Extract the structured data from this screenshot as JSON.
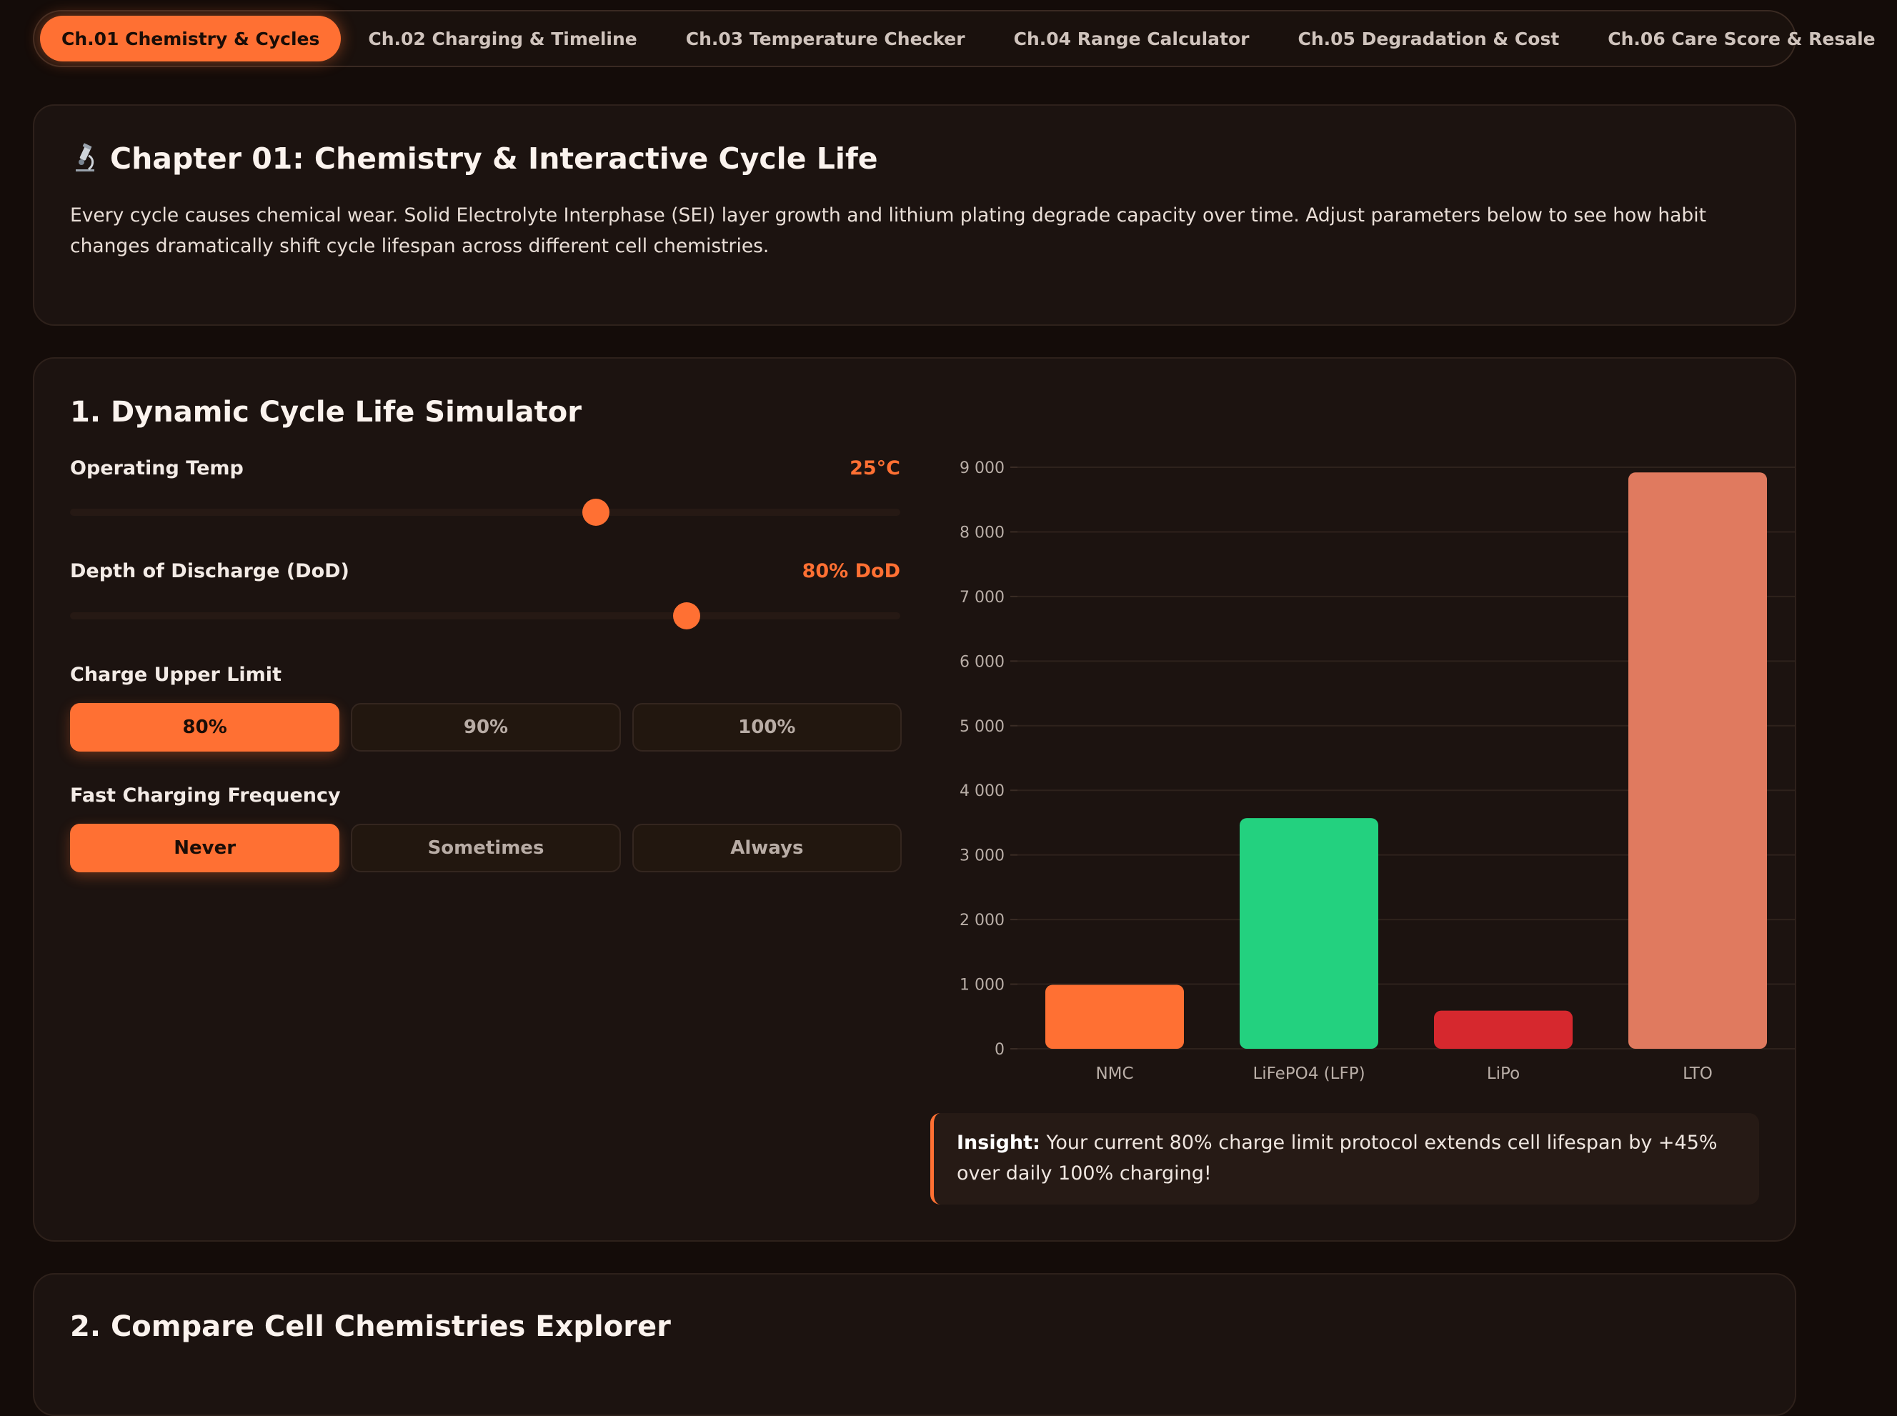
{
  "nav": {
    "tabs": [
      {
        "label": "Ch.01 Chemistry & Cycles",
        "active": true
      },
      {
        "label": "Ch.02 Charging & Timeline",
        "active": false
      },
      {
        "label": "Ch.03 Temperature Checker",
        "active": false
      },
      {
        "label": "Ch.04 Range Calculator",
        "active": false
      },
      {
        "label": "Ch.05 Degradation & Cost",
        "active": false
      },
      {
        "label": "Ch.06 Care Score & Resale",
        "active": false
      }
    ]
  },
  "chapter": {
    "icon": "microscope-icon",
    "title": "Chapter 01: Chemistry & Interactive Cycle Life",
    "description": "Every cycle causes chemical wear. Solid Electrolyte Interphase (SEI) layer growth and lithium plating degrade capacity over time. Adjust parameters below to see how habit changes dramatically shift cycle lifespan across different cell chemistries."
  },
  "simulator": {
    "title": "1. Dynamic Cycle Life Simulator",
    "operating_temp": {
      "label": "Operating Temp",
      "value": "25°C",
      "fraction": 0.633
    },
    "dod": {
      "label": "Depth of Discharge (DoD)",
      "value": "80% DoD",
      "fraction": 0.743
    },
    "charge_limit": {
      "label": "Charge Upper Limit",
      "options": [
        "80%",
        "90%",
        "100%"
      ],
      "selected": "80%"
    },
    "fast_charging": {
      "label": "Fast Charging Frequency",
      "options": [
        "Never",
        "Sometimes",
        "Always"
      ],
      "selected": "Never"
    },
    "insight": {
      "lead": "Insight:",
      "text": " Your current 80% charge limit protocol extends cell lifespan by +45% over daily 100% charging!"
    }
  },
  "chart_data": {
    "type": "bar",
    "categories": [
      "NMC",
      "LiFePO4 (LFP)",
      "LiPo",
      "LTO"
    ],
    "values": [
      990,
      3570,
      590,
      8920
    ],
    "colors": [
      "#ff7033",
      "#23d17f",
      "#d6282e",
      "#e07a5f"
    ],
    "ylim": [
      0,
      9000
    ],
    "yticks": [
      0,
      1000,
      2000,
      3000,
      4000,
      5000,
      6000,
      7000,
      8000,
      9000
    ],
    "ytick_labels": [
      "0",
      "1 000",
      "2 000",
      "3 000",
      "4 000",
      "5 000",
      "6 000",
      "7 000",
      "8 000",
      "9 000"
    ],
    "grid": true
  },
  "explorer": {
    "title": "2. Compare Cell Chemistries Explorer"
  }
}
